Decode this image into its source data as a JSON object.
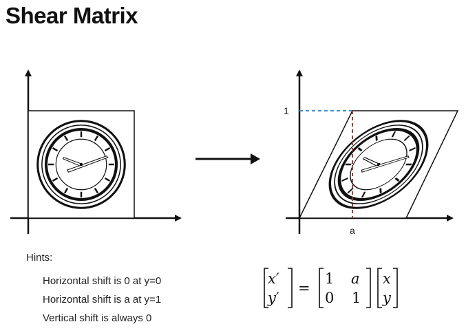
{
  "title": "Shear Matrix",
  "hints": {
    "heading": "Hints:",
    "items": [
      "Horizontal shift is 0 at y=0",
      "Horizontal shift is a at y=1",
      "Vertical shift is always 0"
    ]
  },
  "labels": {
    "one": "1",
    "a": "a"
  },
  "equation": {
    "lhs": [
      "x′",
      "y′"
    ],
    "equals": "=",
    "matrix": [
      [
        "1",
        "a"
      ],
      [
        "0",
        "1"
      ]
    ],
    "rhs": [
      "x",
      "y"
    ]
  },
  "colors": {
    "guide_blue": "#3b8ed8",
    "guide_red": "#b23a2a"
  },
  "icons": [
    "clock-icon",
    "sheared-clock-icon",
    "arrow-right-icon"
  ]
}
